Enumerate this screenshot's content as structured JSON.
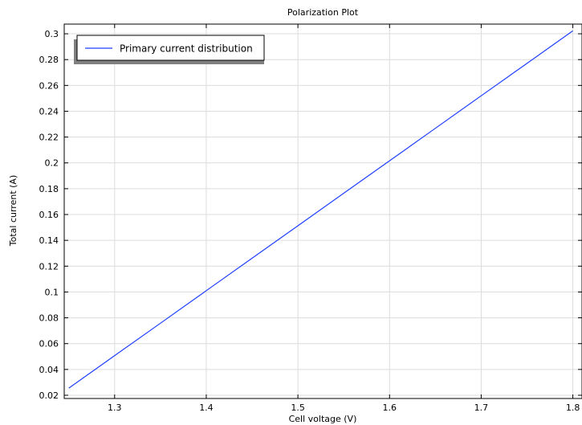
{
  "chart_data": {
    "type": "line",
    "title": "Polarization Plot",
    "xlabel": "Cell voltage (V)",
    "ylabel": "Total current (A)",
    "xlim": [
      1.245,
      1.81
    ],
    "ylim": [
      0.0175,
      0.3075
    ],
    "xticks": [
      1.3,
      1.4,
      1.5,
      1.6,
      1.7,
      1.8
    ],
    "xtick_labels": [
      "1.3",
      "1.4",
      "1.5",
      "1.6",
      "1.7",
      "1.8"
    ],
    "yticks": [
      0.02,
      0.04,
      0.06,
      0.08,
      0.1,
      0.12,
      0.14,
      0.16,
      0.18,
      0.2,
      0.22,
      0.24,
      0.26,
      0.28,
      0.3
    ],
    "ytick_labels": [
      "0.02",
      "0.04",
      "0.06",
      "0.08",
      "0.1",
      "0.12",
      "0.14",
      "0.16",
      "0.18",
      "0.2",
      "0.22",
      "0.24",
      "0.26",
      "0.28",
      "0.3"
    ],
    "grid": true,
    "legend_position": "top-left",
    "series": [
      {
        "name": "Primary current distribution",
        "color": "#1f3fff",
        "x": [
          1.25,
          1.3,
          1.35,
          1.4,
          1.45,
          1.5,
          1.55,
          1.6,
          1.65,
          1.7,
          1.75,
          1.8
        ],
        "y": [
          0.0255,
          0.0507,
          0.0758,
          0.101,
          0.1262,
          0.1513,
          0.1765,
          0.2016,
          0.2268,
          0.252,
          0.2771,
          0.3023
        ]
      }
    ]
  }
}
